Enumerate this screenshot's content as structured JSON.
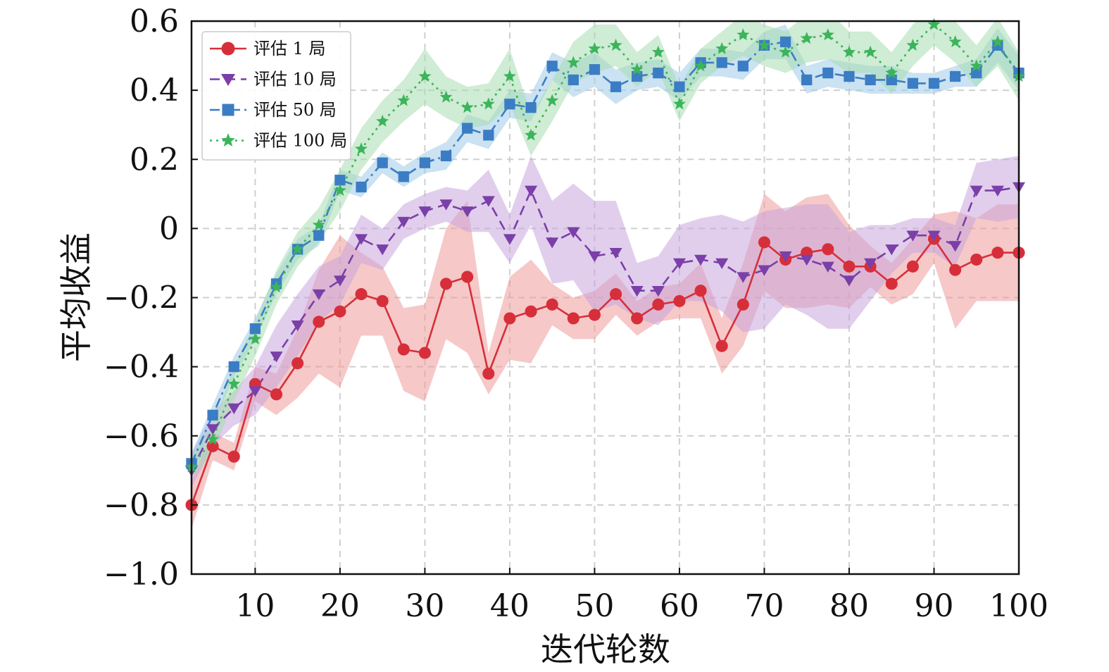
{
  "chart_data": {
    "type": "line",
    "xlabel": "迭代轮数",
    "ylabel": "平均收益",
    "xlim": [
      2.5,
      100
    ],
    "ylim": [
      -1.0,
      0.6
    ],
    "x_ticks": [
      10,
      20,
      30,
      40,
      50,
      60,
      70,
      80,
      90,
      100
    ],
    "x_tick_labels": [
      "10",
      "20",
      "30",
      "40",
      "50",
      "60",
      "70",
      "80",
      "90",
      "100"
    ],
    "y_ticks": [
      -1.0,
      -0.8,
      -0.6,
      -0.4,
      -0.2,
      0,
      0.2,
      0.4,
      0.6
    ],
    "y_tick_labels": [
      "−1.0",
      "−0.8",
      "−0.6",
      "−0.4",
      "−0.2",
      "0",
      "0.2",
      "0.4",
      "0.6"
    ],
    "grid": true,
    "legend_position": "top-left",
    "x": [
      2.5,
      5,
      7.5,
      10,
      12.5,
      15,
      17.5,
      20,
      22.5,
      25,
      27.5,
      30,
      32.5,
      35,
      37.5,
      40,
      42.5,
      45,
      47.5,
      50,
      52.5,
      55,
      57.5,
      60,
      62.5,
      65,
      67.5,
      70,
      72.5,
      75,
      77.5,
      80,
      82.5,
      85,
      87.5,
      90,
      92.5,
      95,
      97.5,
      100
    ],
    "series": [
      {
        "name": "评估 1 局",
        "color": "#d62f3a",
        "band_color": "#ef9a9a",
        "line_style": "solid",
        "marker": "circle",
        "values": [
          -0.8,
          -0.63,
          -0.66,
          -0.45,
          -0.48,
          -0.39,
          -0.27,
          -0.24,
          -0.19,
          -0.21,
          -0.35,
          -0.36,
          -0.16,
          -0.14,
          -0.42,
          -0.26,
          -0.24,
          -0.22,
          -0.26,
          -0.25,
          -0.19,
          -0.26,
          -0.22,
          -0.21,
          -0.18,
          -0.34,
          -0.22,
          -0.04,
          -0.09,
          -0.07,
          -0.06,
          -0.11,
          -0.11,
          -0.16,
          -0.11,
          -0.03,
          -0.12,
          -0.09,
          -0.07,
          -0.07
        ],
        "spread": [
          0.07,
          0.04,
          0.04,
          0.05,
          0.06,
          0.1,
          0.15,
          0.22,
          0.12,
          0.1,
          0.12,
          0.14,
          0.16,
          0.22,
          0.06,
          0.12,
          0.15,
          0.06,
          0.06,
          0.07,
          0.06,
          0.05,
          0.05,
          0.05,
          0.08,
          0.08,
          0.12,
          0.14,
          0.14,
          0.16,
          0.16,
          0.12,
          0.06,
          0.06,
          0.08,
          0.07,
          0.17,
          0.12,
          0.14,
          0.14
        ]
      },
      {
        "name": "评估 10 局",
        "color": "#7a3fa8",
        "band_color": "#c9a6dd",
        "line_style": "dashed",
        "marker": "triangle-down",
        "values": [
          -0.7,
          -0.58,
          -0.52,
          -0.47,
          -0.37,
          -0.28,
          -0.19,
          -0.15,
          -0.03,
          -0.06,
          0.02,
          0.05,
          0.07,
          0.05,
          0.08,
          -0.03,
          0.11,
          -0.04,
          -0.01,
          -0.08,
          -0.07,
          -0.18,
          -0.18,
          -0.1,
          -0.09,
          -0.1,
          -0.14,
          -0.12,
          -0.08,
          -0.09,
          -0.11,
          -0.15,
          -0.1,
          -0.06,
          -0.02,
          -0.02,
          -0.05,
          0.11,
          0.11,
          0.12
        ],
        "spread": [
          0.05,
          0.05,
          0.05,
          0.07,
          0.09,
          0.09,
          0.08,
          0.07,
          0.07,
          0.06,
          0.05,
          0.05,
          0.05,
          0.06,
          0.09,
          0.07,
          0.1,
          0.12,
          0.14,
          0.16,
          0.15,
          0.08,
          0.1,
          0.11,
          0.12,
          0.14,
          0.16,
          0.17,
          0.14,
          0.16,
          0.18,
          0.14,
          0.11,
          0.07,
          0.05,
          0.05,
          0.06,
          0.08,
          0.09,
          0.09
        ]
      },
      {
        "name": "评估 50 局",
        "color": "#3b7dc4",
        "band_color": "#9fcbe8",
        "line_style": "dashdot",
        "marker": "square",
        "values": [
          -0.68,
          -0.54,
          -0.4,
          -0.29,
          -0.16,
          -0.06,
          -0.02,
          0.14,
          0.12,
          0.19,
          0.15,
          0.19,
          0.21,
          0.29,
          0.27,
          0.36,
          0.35,
          0.47,
          0.43,
          0.46,
          0.41,
          0.44,
          0.45,
          0.41,
          0.48,
          0.48,
          0.47,
          0.53,
          0.54,
          0.43,
          0.45,
          0.44,
          0.43,
          0.43,
          0.42,
          0.42,
          0.44,
          0.45,
          0.53,
          0.45
        ],
        "spread": [
          0.03,
          0.03,
          0.03,
          0.03,
          0.03,
          0.03,
          0.03,
          0.03,
          0.03,
          0.03,
          0.03,
          0.03,
          0.04,
          0.04,
          0.04,
          0.04,
          0.04,
          0.04,
          0.05,
          0.05,
          0.05,
          0.04,
          0.04,
          0.04,
          0.04,
          0.04,
          0.04,
          0.04,
          0.05,
          0.04,
          0.04,
          0.04,
          0.04,
          0.04,
          0.03,
          0.03,
          0.03,
          0.04,
          0.05,
          0.05
        ]
      },
      {
        "name": "评估 100 局",
        "color": "#3bb45a",
        "band_color": "#a8ddb0",
        "line_style": "dotted",
        "marker": "star",
        "values": [
          -0.69,
          -0.61,
          -0.45,
          -0.32,
          -0.17,
          -0.06,
          0.01,
          0.11,
          0.23,
          0.31,
          0.37,
          0.44,
          0.38,
          0.35,
          0.36,
          0.44,
          0.27,
          0.37,
          0.48,
          0.52,
          0.53,
          0.46,
          0.51,
          0.36,
          0.47,
          0.52,
          0.56,
          0.53,
          0.51,
          0.55,
          0.56,
          0.51,
          0.51,
          0.45,
          0.53,
          0.59,
          0.54,
          0.47,
          0.54,
          0.44
        ],
        "spread": [
          0.03,
          0.04,
          0.05,
          0.05,
          0.05,
          0.05,
          0.05,
          0.06,
          0.06,
          0.06,
          0.06,
          0.08,
          0.06,
          0.06,
          0.06,
          0.08,
          0.06,
          0.06,
          0.06,
          0.07,
          0.06,
          0.05,
          0.05,
          0.05,
          0.05,
          0.05,
          0.06,
          0.06,
          0.06,
          0.07,
          0.07,
          0.06,
          0.06,
          0.06,
          0.06,
          0.06,
          0.06,
          0.06,
          0.07,
          0.07
        ]
      }
    ]
  }
}
